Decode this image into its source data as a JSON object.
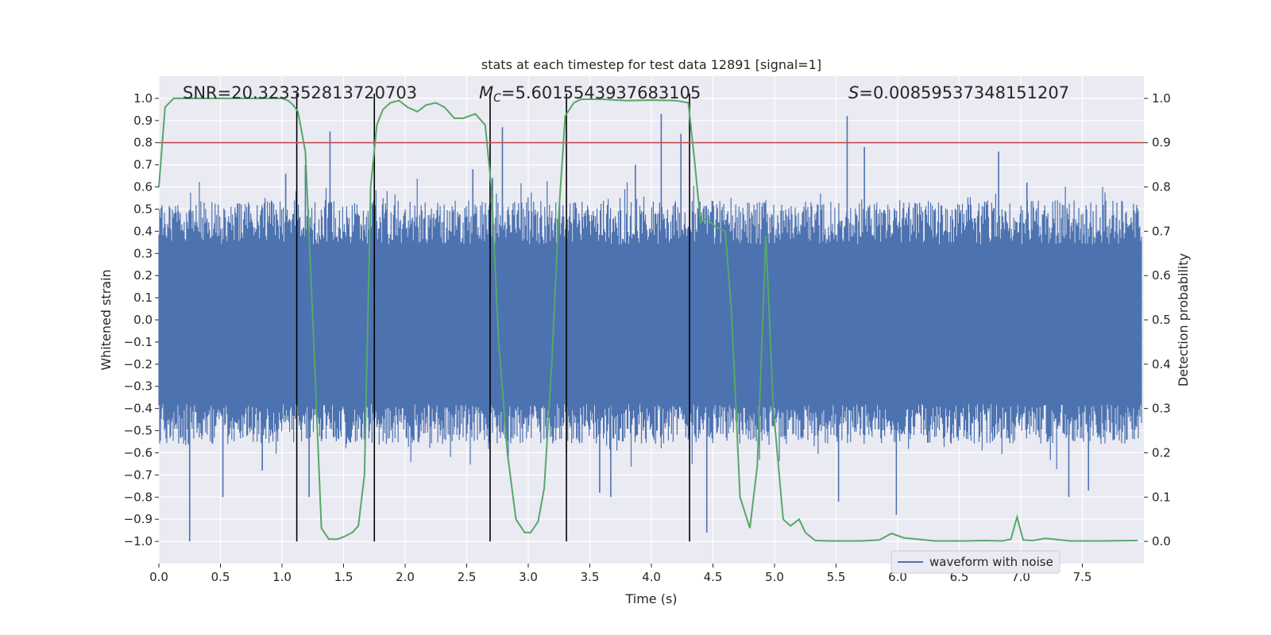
{
  "chart_data": {
    "type": "line",
    "title": "stats at each timestep for test data 12891 [signal=1]",
    "xlabel": "Time (s)",
    "ylabel": "Whitened strain",
    "y2label": "Detection probability",
    "xlim": [
      0.0,
      8.0
    ],
    "ylim": [
      -1.1,
      1.1
    ],
    "y2lim": [
      -0.05,
      1.05
    ],
    "xticks": [
      "0.0",
      "0.5",
      "1.0",
      "1.5",
      "2.0",
      "2.5",
      "3.0",
      "3.5",
      "4.0",
      "4.5",
      "5.0",
      "5.5",
      "6.0",
      "6.5",
      "7.0",
      "7.5"
    ],
    "yticks": [
      "1.0",
      "0.9",
      "0.8",
      "0.7",
      "0.6",
      "0.5",
      "0.4",
      "0.3",
      "0.2",
      "0.1",
      "0.0",
      "-0.1",
      "-0.2",
      "-0.3",
      "-0.4",
      "-0.5",
      "-0.6",
      "-0.7",
      "-0.8",
      "-0.9",
      "-1.0"
    ],
    "y2ticks": [
      "1.0",
      "0.9",
      "0.8",
      "0.7",
      "0.6",
      "0.5",
      "0.4",
      "0.3",
      "0.2",
      "0.1",
      "0.0"
    ],
    "annotations": {
      "snr": "SNR=20.323352813720703",
      "mc_symbol": "M",
      "mc_sub": "C",
      "mc_value": "=5.6015543937683105",
      "s_symbol": "S",
      "s_value": "=0.00859537348151207"
    },
    "threshold": 0.9,
    "vlines": [
      1.12,
      1.75,
      2.69,
      3.31,
      4.31
    ],
    "series": [
      {
        "name": "waveform with noise",
        "color": "#4c72b0",
        "peaks": [
          {
            "t": 0.25,
            "v": -1.0
          },
          {
            "t": 0.52,
            "v": -0.8
          },
          {
            "t": 0.84,
            "v": -0.68
          },
          {
            "t": 1.03,
            "v": 0.66
          },
          {
            "t": 1.19,
            "v": 0.7
          },
          {
            "t": 1.22,
            "v": -0.8
          },
          {
            "t": 1.39,
            "v": 0.85
          },
          {
            "t": 2.55,
            "v": 0.68
          },
          {
            "t": 2.71,
            "v": 0.64
          },
          {
            "t": 2.79,
            "v": 0.87
          },
          {
            "t": 3.58,
            "v": -0.78
          },
          {
            "t": 3.67,
            "v": -0.8
          },
          {
            "t": 3.87,
            "v": 0.7
          },
          {
            "t": 4.08,
            "v": 0.93
          },
          {
            "t": 4.24,
            "v": 0.84
          },
          {
            "t": 4.45,
            "v": -0.96
          },
          {
            "t": 5.52,
            "v": -0.82
          },
          {
            "t": 5.59,
            "v": 0.92
          },
          {
            "t": 5.73,
            "v": 0.78
          },
          {
            "t": 5.99,
            "v": -0.88
          },
          {
            "t": 6.82,
            "v": 0.76
          },
          {
            "t": 7.05,
            "v": 0.62
          },
          {
            "t": 7.39,
            "v": -0.8
          },
          {
            "t": 7.55,
            "v": -0.77
          }
        ]
      },
      {
        "name": "detection probability",
        "color": "#55a868",
        "x": [
          0.0,
          0.05,
          0.12,
          0.25,
          0.5,
          0.75,
          1.0,
          1.05,
          1.09,
          1.13,
          1.19,
          1.25,
          1.32,
          1.38,
          1.45,
          1.5,
          1.57,
          1.62,
          1.67,
          1.72,
          1.77,
          1.82,
          1.88,
          1.95,
          2.02,
          2.1,
          2.17,
          2.25,
          2.32,
          2.4,
          2.47,
          2.57,
          2.65,
          2.7,
          2.76,
          2.83,
          2.9,
          2.97,
          3.02,
          3.08,
          3.13,
          3.19,
          3.25,
          3.3,
          3.37,
          3.43,
          3.5,
          3.6,
          3.8,
          4.0,
          4.2,
          4.3,
          4.35,
          4.4,
          4.45,
          4.52,
          4.6,
          4.65,
          4.72,
          4.8,
          4.86,
          4.93,
          4.99,
          5.07,
          5.13,
          5.2,
          5.25,
          5.33,
          5.45,
          5.7,
          5.85,
          5.95,
          6.05,
          6.3,
          6.55,
          6.7,
          6.85,
          6.92,
          6.97,
          7.02,
          7.1,
          7.2,
          7.4,
          7.65,
          7.95
        ],
        "values": [
          0.8,
          0.98,
          1.0,
          1.0,
          1.0,
          1.0,
          1.0,
          0.995,
          0.985,
          0.97,
          0.88,
          0.5,
          0.03,
          0.005,
          0.005,
          0.01,
          0.02,
          0.035,
          0.15,
          0.8,
          0.94,
          0.975,
          0.99,
          0.995,
          0.98,
          0.97,
          0.985,
          0.99,
          0.98,
          0.955,
          0.955,
          0.965,
          0.94,
          0.8,
          0.45,
          0.2,
          0.05,
          0.02,
          0.02,
          0.045,
          0.12,
          0.4,
          0.75,
          0.96,
          0.99,
          0.998,
          0.998,
          0.998,
          0.995,
          0.996,
          0.995,
          0.99,
          0.86,
          0.72,
          0.73,
          0.71,
          0.7,
          0.52,
          0.1,
          0.03,
          0.17,
          0.69,
          0.3,
          0.05,
          0.035,
          0.05,
          0.02,
          0.002,
          0.001,
          0.001,
          0.003,
          0.018,
          0.008,
          0.001,
          0.001,
          0.002,
          0.001,
          0.005,
          0.055,
          0.003,
          0.002,
          0.007,
          0.001,
          0.001,
          0.002
        ]
      },
      {
        "name": "detection threshold",
        "color": "#c44e52",
        "values": [
          0.9,
          0.9
        ]
      }
    ],
    "legend": {
      "label": "waveform with noise",
      "location": "lower-right"
    }
  }
}
